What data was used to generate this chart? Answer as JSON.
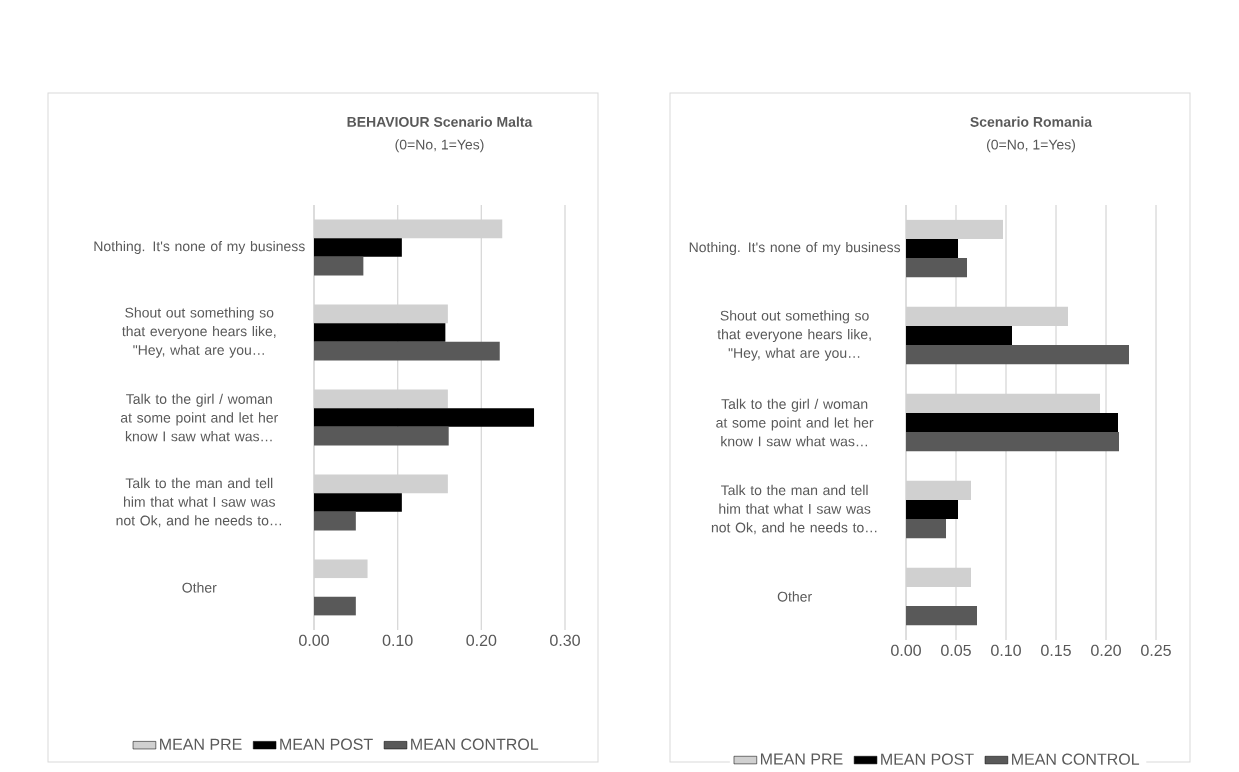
{
  "chart_data": [
    {
      "type": "bar",
      "orientation": "horizontal",
      "title": "**BEHAVIOUR Scenario Malta**",
      "subtitle": "(0=No, 1=Yes)",
      "categories": [
        "Nothing. It's none of my business",
        "Shout out something so that everyone hears like, \"Hey, what are you…",
        "Talk to the girl / woman at some point and let her know I saw what was…",
        "Talk to the man and tell him that what I saw was not Ok, and he needs to…",
        "Other"
      ],
      "series": [
        {
          "name": "MEAN PRE",
          "color": "#d0d0d0",
          "values": [
            0.225,
            0.16,
            0.16,
            0.16,
            0.064
          ]
        },
        {
          "name": "MEAN POST",
          "color": "#000000",
          "values": [
            0.105,
            0.157,
            0.263,
            0.105,
            0
          ]
        },
        {
          "name": "MEAN CONTROL",
          "color": "#595959",
          "values": [
            0.059,
            0.222,
            0.161,
            0.05,
            0.05
          ]
        }
      ],
      "xlim": [
        0,
        0.3
      ],
      "xticks": [
        {
          "value": 0,
          "label": "0.00"
        },
        {
          "value": 0.1,
          "label": "0.10"
        },
        {
          "value": 0.2,
          "label": "0.20"
        },
        {
          "value": 0.3,
          "label": "0.30"
        }
      ],
      "grid": "x",
      "legend": "bottom"
    },
    {
      "type": "bar",
      "orientation": "horizontal",
      "title": "**Scenario Romania**",
      "subtitle": "(0=No, 1=Yes)",
      "categories": [
        "Nothing. It's none of my business",
        "Shout out something so that everyone hears like, \"Hey, what are you…",
        "Talk to the girl / woman at some point and let her know I saw what was…",
        "Talk to the man and tell him that what I saw was not Ok, and he needs to…",
        "Other"
      ],
      "series": [
        {
          "name": "MEAN PRE",
          "color": "#d0d0d0",
          "values": [
            0.097,
            0.162,
            0.194,
            0.065,
            0.065
          ]
        },
        {
          "name": "MEAN POST",
          "color": "#000000",
          "values": [
            0.052,
            0.106,
            0.212,
            0.052,
            0
          ]
        },
        {
          "name": "MEAN CONTROL",
          "color": "#595959",
          "values": [
            0.061,
            0.223,
            0.213,
            0.04,
            0.071
          ]
        }
      ],
      "xlim": [
        0,
        0.25
      ],
      "xticks": [
        {
          "value": 0,
          "label": "0.00"
        },
        {
          "value": 0.05,
          "label": "0.05"
        },
        {
          "value": 0.1,
          "label": "0.10"
        },
        {
          "value": 0.15,
          "label": "0.15"
        },
        {
          "value": 0.2,
          "label": "0.20"
        },
        {
          "value": 0.25,
          "label": "0.25"
        }
      ],
      "grid": "x",
      "legend": "bottom"
    }
  ]
}
